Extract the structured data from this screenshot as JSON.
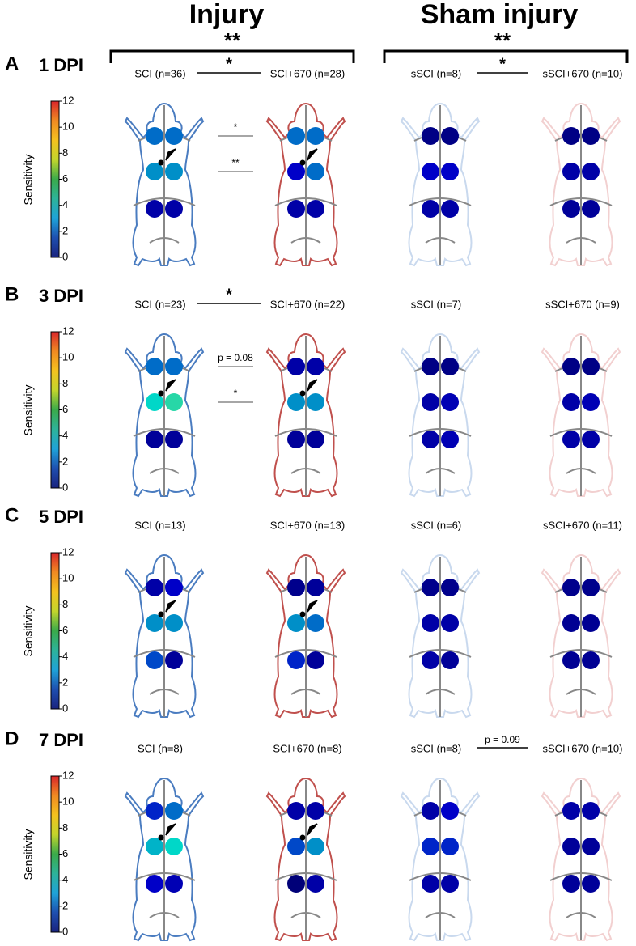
{
  "header": {
    "injury": "Injury",
    "sham": "Sham injury",
    "injury_sig": "**",
    "sham_sig": "**"
  },
  "colorbar": {
    "label": "Sensitivity",
    "ticks": [
      0,
      2,
      4,
      6,
      8,
      10,
      12
    ]
  },
  "panels": [
    {
      "letter": "A",
      "day": "1 DPI",
      "injury_sig": "*",
      "sham_sig": "*",
      "top_sig": "*",
      "mid_sig": "**",
      "groups": [
        {
          "label": "SCI (n=36)",
          "spots": [
            3,
            3,
            3.5,
            3.5,
            1,
            1
          ]
        },
        {
          "label": "SCI+670 (n=28)",
          "spots": [
            3,
            3,
            1.5,
            3,
            1,
            1
          ]
        },
        {
          "label": "sSCI (n=8)",
          "spots": [
            0.5,
            0.5,
            1.5,
            1.5,
            1,
            1
          ]
        },
        {
          "label": "sSCI+670 (n=10)",
          "spots": [
            0.5,
            0.5,
            1,
            1,
            0.8,
            0.8
          ]
        }
      ]
    },
    {
      "letter": "B",
      "day": "3 DPI",
      "injury_sig": "*",
      "top_sig": "p = 0.08",
      "mid_sig": "*",
      "groups": [
        {
          "label": "SCI (n=23)",
          "spots": [
            3,
            3,
            4.5,
            5,
            0.8,
            0.8
          ]
        },
        {
          "label": "SCI+670 (n=22)",
          "spots": [
            1,
            1,
            3.5,
            3.5,
            0.8,
            0.8
          ]
        },
        {
          "label": "sSCI (n=7)",
          "spots": [
            0.5,
            0.5,
            1,
            1.2,
            1,
            1.2
          ]
        },
        {
          "label": "sSCI+670 (n=9)",
          "spots": [
            0.5,
            0.5,
            1,
            1.2,
            1,
            1
          ]
        }
      ]
    },
    {
      "letter": "C",
      "day": "5 DPI",
      "groups": [
        {
          "label": "SCI (n=13)",
          "spots": [
            1,
            1.5,
            3.5,
            3.5,
            2.5,
            0.8
          ]
        },
        {
          "label": "SCI+670 (n=13)",
          "spots": [
            0.6,
            0.8,
            3.5,
            3,
            2,
            0.8
          ]
        },
        {
          "label": "sSCI (n=6)",
          "spots": [
            0.6,
            0.6,
            1,
            1,
            1,
            0.8
          ]
        },
        {
          "label": "sSCI+670 (n=11)",
          "spots": [
            0.6,
            0.6,
            0.7,
            0.7,
            0.7,
            0.7
          ]
        }
      ]
    },
    {
      "letter": "D",
      "day": "7 DPI",
      "sham_sig": "p = 0.09",
      "groups": [
        {
          "label": "SCI (n=8)",
          "spots": [
            2,
            3,
            4,
            4.5,
            1.5,
            1.2
          ]
        },
        {
          "label": "SCI+670 (n=8)",
          "spots": [
            1,
            1,
            2.5,
            3.5,
            0.3,
            1
          ]
        },
        {
          "label": "sSCI (n=8)",
          "spots": [
            1,
            1.5,
            2,
            2,
            1,
            1
          ]
        },
        {
          "label": "sSCI+670 (n=10)",
          "spots": [
            1,
            1,
            0.8,
            0.8,
            0.8,
            0.8
          ]
        }
      ]
    }
  ]
}
